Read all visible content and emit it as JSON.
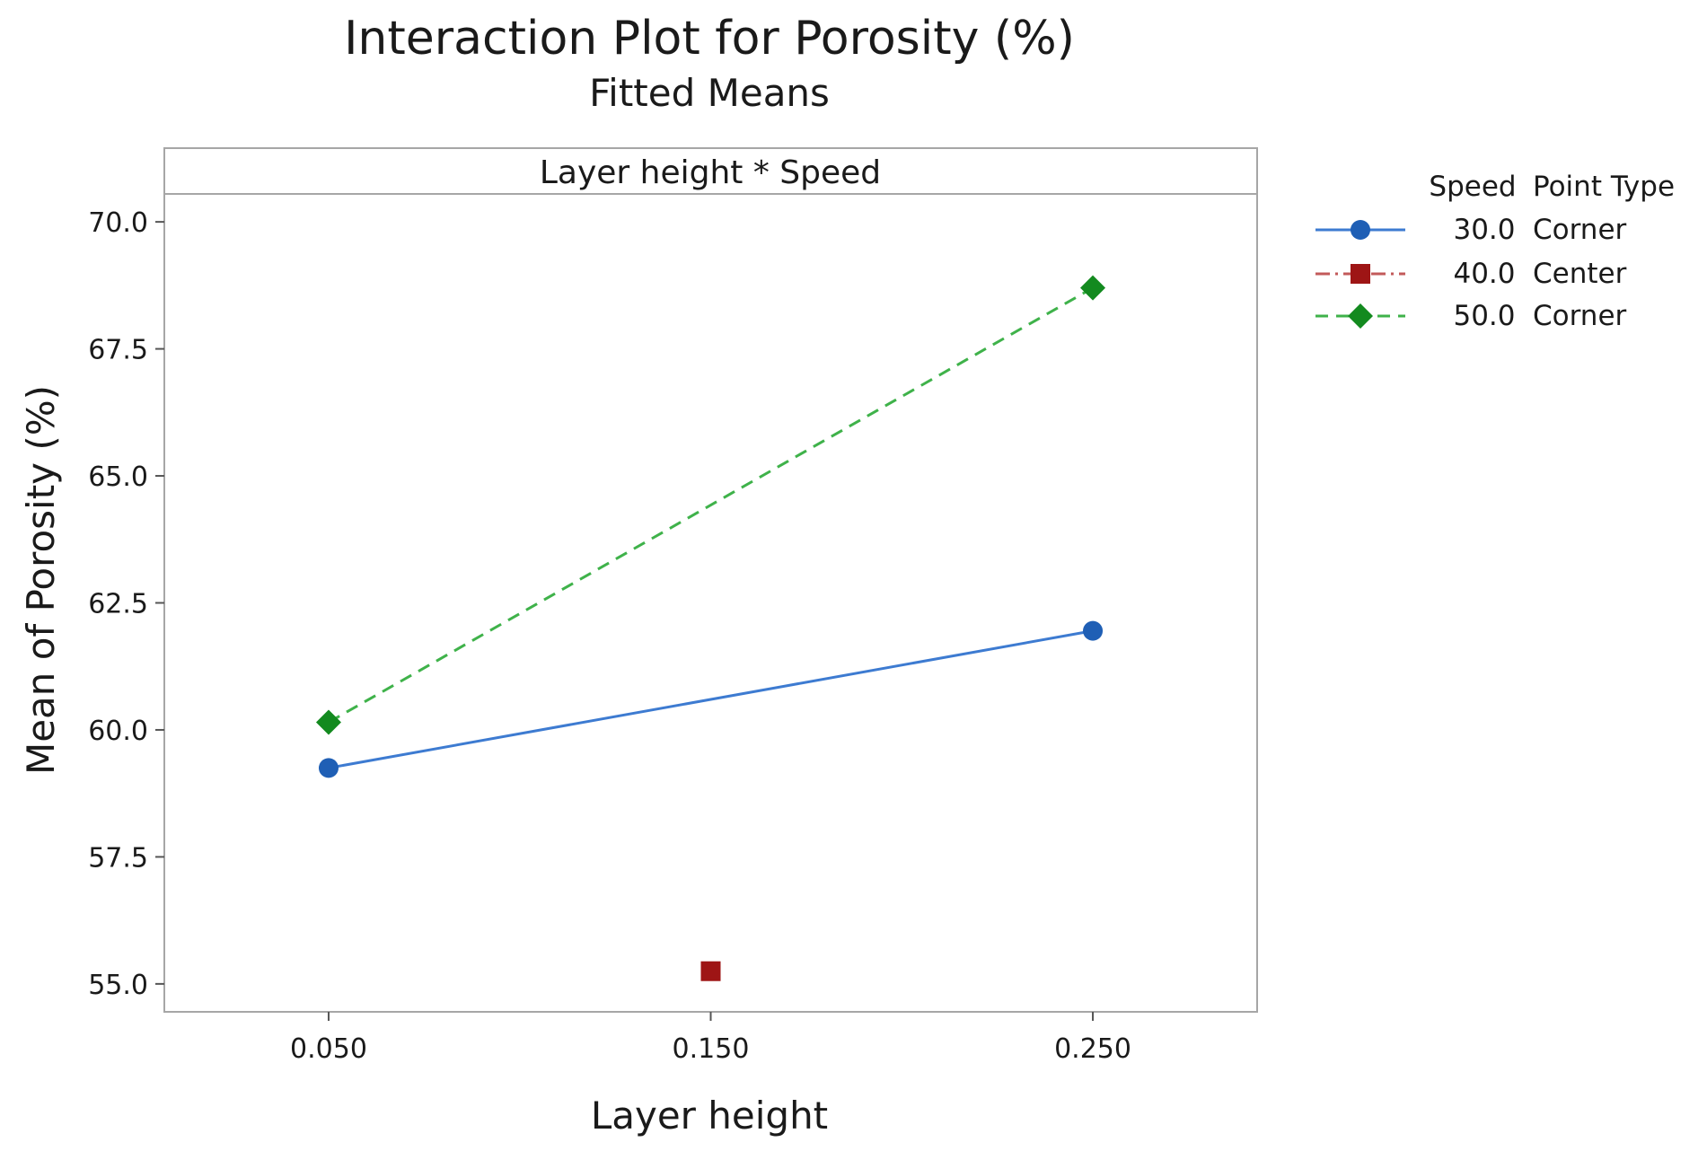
{
  "chart_data": {
    "type": "line",
    "title": "Interaction Plot for Porosity (%)",
    "subtitle": "Fitted Means",
    "panel_label": "Layer height * Speed",
    "xlabel": "Layer height",
    "ylabel": "Mean of Porosity (%)",
    "x_categories": [
      "0.050",
      "0.150",
      "0.250"
    ],
    "x_values": [
      0.05,
      0.15,
      0.25
    ],
    "xlim": [
      0.007,
      0.293
    ],
    "ylim": [
      54.45,
      70.55
    ],
    "y_ticks": [
      55.0,
      57.5,
      60.0,
      62.5,
      65.0,
      67.5,
      70.0
    ],
    "y_tick_labels": [
      "55.0",
      "57.5",
      "60.0",
      "62.5",
      "65.0",
      "67.5",
      "70.0"
    ],
    "grid": false,
    "legend": {
      "position": "right",
      "header_speed": "Speed",
      "header_point_type": "Point Type"
    },
    "series": [
      {
        "name": "30.0",
        "speed": "30.0",
        "point_type": "Corner",
        "marker": "circle",
        "line_style": "solid",
        "color": "#1f5fb5",
        "line_color": "#3d7bd1",
        "points": [
          {
            "x": 0.05,
            "y": 59.25
          },
          {
            "x": 0.25,
            "y": 61.95
          }
        ]
      },
      {
        "name": "40.0",
        "speed": "40.0",
        "point_type": "Center",
        "marker": "square",
        "line_style": "dashdot",
        "color": "#9e1515",
        "line_color": "#c25a5a",
        "points": [
          {
            "x": 0.15,
            "y": 55.25
          }
        ]
      },
      {
        "name": "50.0",
        "speed": "50.0",
        "point_type": "Corner",
        "marker": "diamond",
        "line_style": "dashed",
        "color": "#138a1f",
        "line_color": "#3fb24a",
        "points": [
          {
            "x": 0.05,
            "y": 60.15
          },
          {
            "x": 0.25,
            "y": 68.7
          }
        ]
      }
    ]
  },
  "colors": {
    "frame": "#a6a6a6",
    "text": "#1a1a1a"
  }
}
